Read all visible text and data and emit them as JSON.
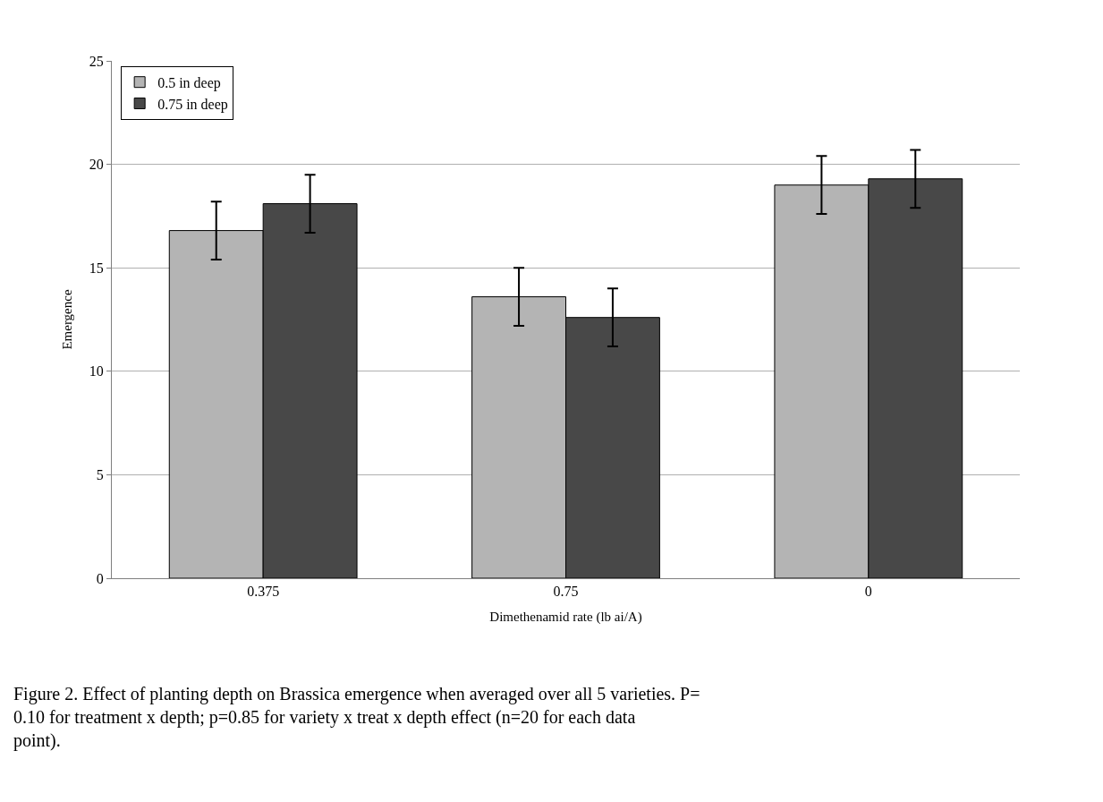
{
  "chart_data": {
    "type": "bar",
    "xlabel": "Dimethenamid rate (lb ai/A)",
    "ylabel": "Emergence",
    "categories": [
      "0.375",
      "0.75",
      "0"
    ],
    "series": [
      {
        "name": "0.5 in deep",
        "color": "#b4b4b4",
        "values": [
          16.8,
          13.6,
          19.0
        ],
        "errors": [
          1.4,
          1.4,
          1.4
        ]
      },
      {
        "name": "0.75 in deep",
        "color": "#484848",
        "values": [
          18.1,
          12.6,
          19.3
        ],
        "errors": [
          1.4,
          1.4,
          1.4
        ]
      }
    ],
    "ylim": [
      0,
      25
    ],
    "yticks": [
      0,
      5,
      10,
      15,
      20,
      25
    ],
    "grid": "y",
    "legend": "top left",
    "annotations": [
      "Figure 2. Effect of planting depth on Brassica emergence when averaged over all 5 varieties. P= 0.10 for treatment x depth; p=0.85 for variety x treat x depth effect (n=20 for each data point)."
    ]
  }
}
